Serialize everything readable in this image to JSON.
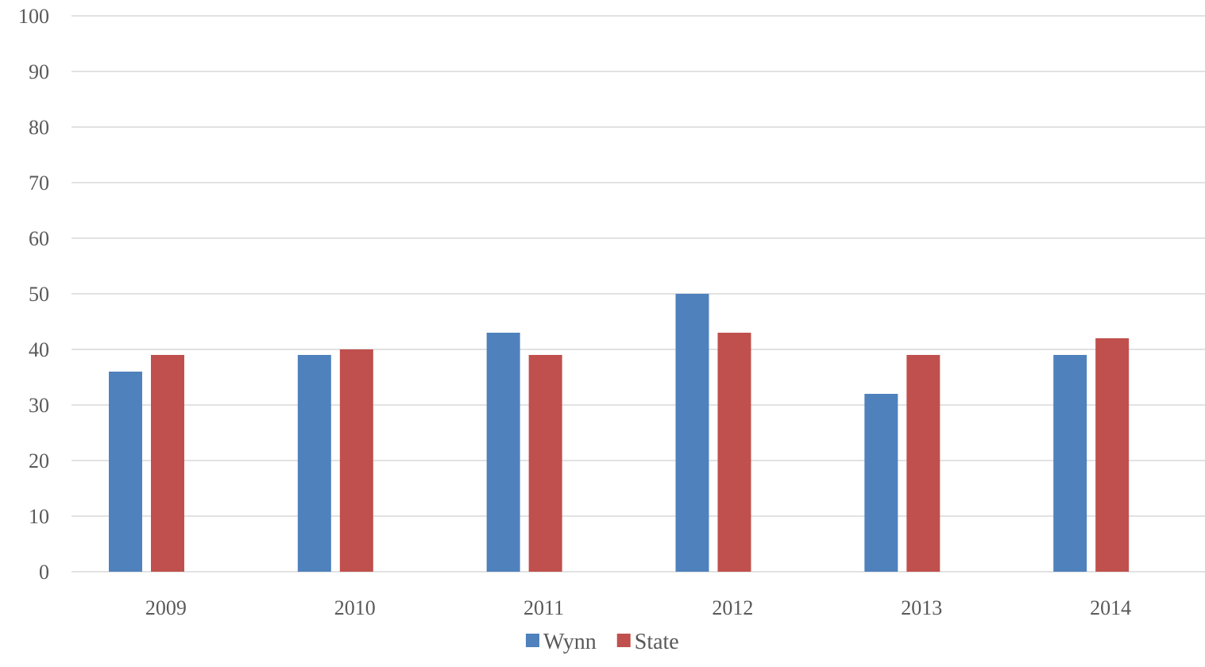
{
  "chart_data": {
    "type": "bar",
    "title": "",
    "xlabel": "",
    "ylabel": "",
    "categories": [
      "2009",
      "2010",
      "2011",
      "2012",
      "2013",
      "2014"
    ],
    "series": [
      {
        "name": "Wynn",
        "color": "#4F81BD",
        "values": [
          36,
          39,
          43,
          50,
          32,
          39
        ]
      },
      {
        "name": "State",
        "color": "#C0504D",
        "values": [
          39,
          40,
          39,
          43,
          39,
          42
        ]
      }
    ],
    "ylim": [
      0,
      100
    ],
    "yticks": [
      "0",
      "10",
      "20",
      "30",
      "40",
      "50",
      "60",
      "70",
      "80",
      "90",
      "100"
    ],
    "grid": true,
    "gridline_color": "#D9D9D9",
    "legend_position": "bottom"
  }
}
